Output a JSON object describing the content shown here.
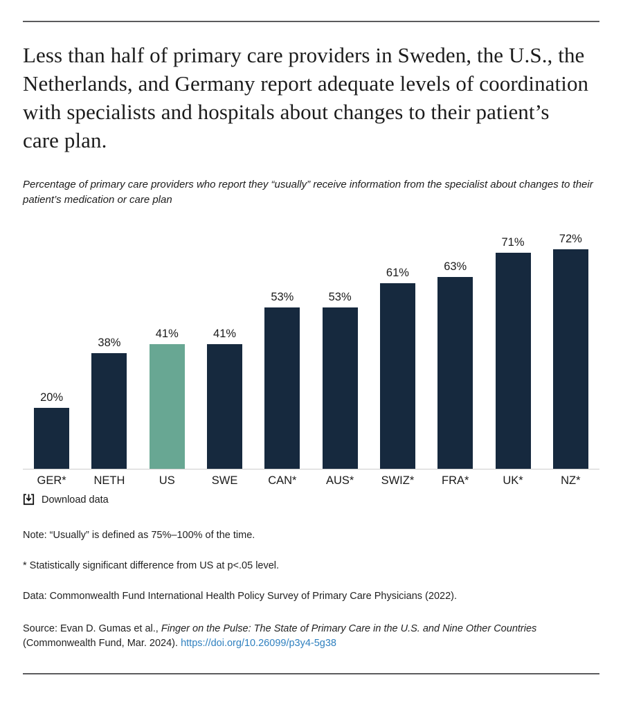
{
  "page": {
    "title": "Less than half of primary care providers in Sweden, the U.S., the Netherlands, and Germany report adequate levels of coordination with specialists and hospitals about changes to their patient’s care plan.",
    "subtitle": "Percentage of primary care providers who report they “usually” receive information from the specialist about changes to their patient’s medication or care plan"
  },
  "chart_data": {
    "type": "bar",
    "categories": [
      "GER*",
      "NETH",
      "US",
      "SWE",
      "CAN*",
      "AUS*",
      "SWIZ*",
      "FRA*",
      "UK*",
      "NZ*"
    ],
    "values": [
      20,
      38,
      41,
      41,
      53,
      53,
      61,
      63,
      71,
      72
    ],
    "value_labels": [
      "20%",
      "38%",
      "41%",
      "41%",
      "53%",
      "53%",
      "61%",
      "63%",
      "71%",
      "72%"
    ],
    "title": "",
    "xlabel": "",
    "ylabel": "",
    "ylim": [
      0,
      77
    ],
    "grid": false,
    "legend": "none",
    "highlight_category": "US",
    "bar_color": "#16293e",
    "highlight_color": "#68a793",
    "axis_line_color": "#cccccc"
  },
  "download": {
    "label": "Download data"
  },
  "notes": {
    "note": "Note: “Usually” is defined as 75%–100% of the time.",
    "significance": "* Statistically significant difference from US at p<.05 level.",
    "data_source": "Data: Commonwealth Fund International Health Policy Survey of Primary Care Physicians (2022).",
    "source_prefix": "Source: Evan D. Gumas et al., ",
    "source_title": "Finger on the Pulse: The State of Primary Care in the U.S. and Nine Other Countries",
    "source_suffix": " (Commonwealth Fund, Mar. 2024). ",
    "source_link": "https://doi.org/10.26099/p3y4-5g38"
  },
  "colors": {
    "rule": "#5b5b5d",
    "link": "#2f80bf",
    "text": "#1a1a1a"
  }
}
